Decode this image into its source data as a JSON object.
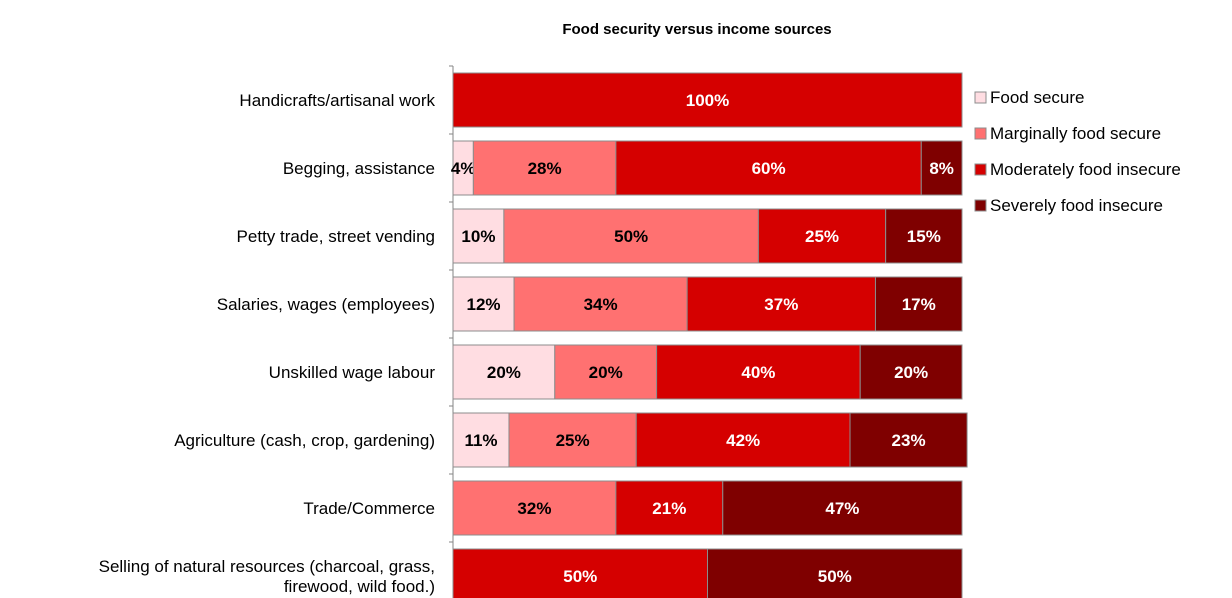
{
  "chart_data": {
    "type": "bar",
    "orientation": "horizontal",
    "stacked": true,
    "title": "Food security versus income sources",
    "categories": [
      [
        "Handicrafts/artisanal work"
      ],
      [
        "Begging, assistance"
      ],
      [
        "Petty trade, street vending"
      ],
      [
        "Salaries, wages (employees)"
      ],
      [
        "Unskilled wage labour"
      ],
      [
        "Agriculture (cash, crop, gardening)"
      ],
      [
        "Trade/Commerce"
      ],
      [
        "Selling of natural resources (charcoal, grass,",
        "firewood, wild food.)"
      ]
    ],
    "series": [
      {
        "name": "Food secure",
        "color": "#ffdde2",
        "label_color": "#000000",
        "values": [
          0,
          4,
          10,
          12,
          20,
          11,
          0,
          0
        ]
      },
      {
        "name": "Marginally food secure",
        "color": "#ff7171",
        "label_color": "#000000",
        "values": [
          0,
          28,
          50,
          34,
          20,
          25,
          32,
          0
        ]
      },
      {
        "name": "Moderately food insecure",
        "color": "#d50000",
        "label_color": "#ffffff",
        "values": [
          100,
          60,
          25,
          37,
          40,
          42,
          21,
          50
        ]
      },
      {
        "name": "Severely food insecure",
        "color": "#7f0000",
        "label_color": "#ffffff",
        "values": [
          0,
          8,
          15,
          17,
          20,
          23,
          47,
          50
        ]
      }
    ],
    "value_suffix": "%",
    "xlim": [
      0,
      100
    ],
    "legend_position": "right",
    "grid": false
  }
}
